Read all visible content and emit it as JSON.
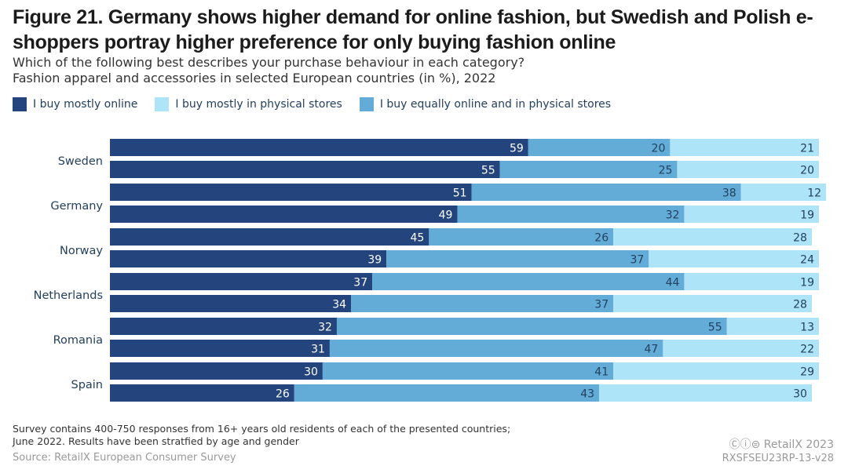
{
  "title": "Figure 21. Germany shows higher demand for online fashion, but Swedish and Polish e-shoppers portray higher preference for only buying fashion online",
  "subtitle_1": "Which of the following best describes your purchase behaviour in each category?",
  "subtitle_2": "Fashion apparel and accessories in selected European countries (in %), 2022",
  "legend": [
    {
      "label": "I buy mostly online",
      "color": "#23447d"
    },
    {
      "label": "I buy mostly in physical stores",
      "color": "#ade4f7"
    },
    {
      "label": "I buy equally online and in physical stores",
      "color": "#62acd7"
    }
  ],
  "chart_data": {
    "type": "bar",
    "orientation": "horizontal-stacked",
    "categories": [
      "Sweden",
      "Germany",
      "Norway",
      "Netherlands",
      "Romania",
      "Spain"
    ],
    "bars_per_category": 2,
    "series": [
      {
        "name": "I buy mostly online",
        "color": "#23447d",
        "values": [
          [
            59,
            55
          ],
          [
            51,
            49
          ],
          [
            45,
            39
          ],
          [
            37,
            34
          ],
          [
            32,
            31
          ],
          [
            30,
            26
          ]
        ]
      },
      {
        "name": "I buy equally online and in physical stores",
        "color": "#62acd7",
        "values": [
          [
            20,
            25
          ],
          [
            38,
            32
          ],
          [
            26,
            37
          ],
          [
            44,
            37
          ],
          [
            55,
            47
          ],
          [
            41,
            43
          ]
        ]
      },
      {
        "name": "I buy mostly in physical stores",
        "color": "#ade4f7",
        "values": [
          [
            21,
            20
          ],
          [
            12,
            19
          ],
          [
            28,
            24
          ],
          [
            19,
            28
          ],
          [
            13,
            22
          ],
          [
            29,
            30
          ]
        ]
      }
    ],
    "xlim": [
      0,
      100
    ],
    "grid": false
  },
  "footer": {
    "note_1": "Survey contains 400-750 responses from 16+ years old residents of each of the presented countries;",
    "note_2": "June 2022. Results have been stratfied by age and gender",
    "source": "Source: RetailX European Consumer Survey",
    "copyright": "Ⓒⓘ⊜ RetailX 2023",
    "code": "RXSFSEU23RP-13-v28"
  }
}
